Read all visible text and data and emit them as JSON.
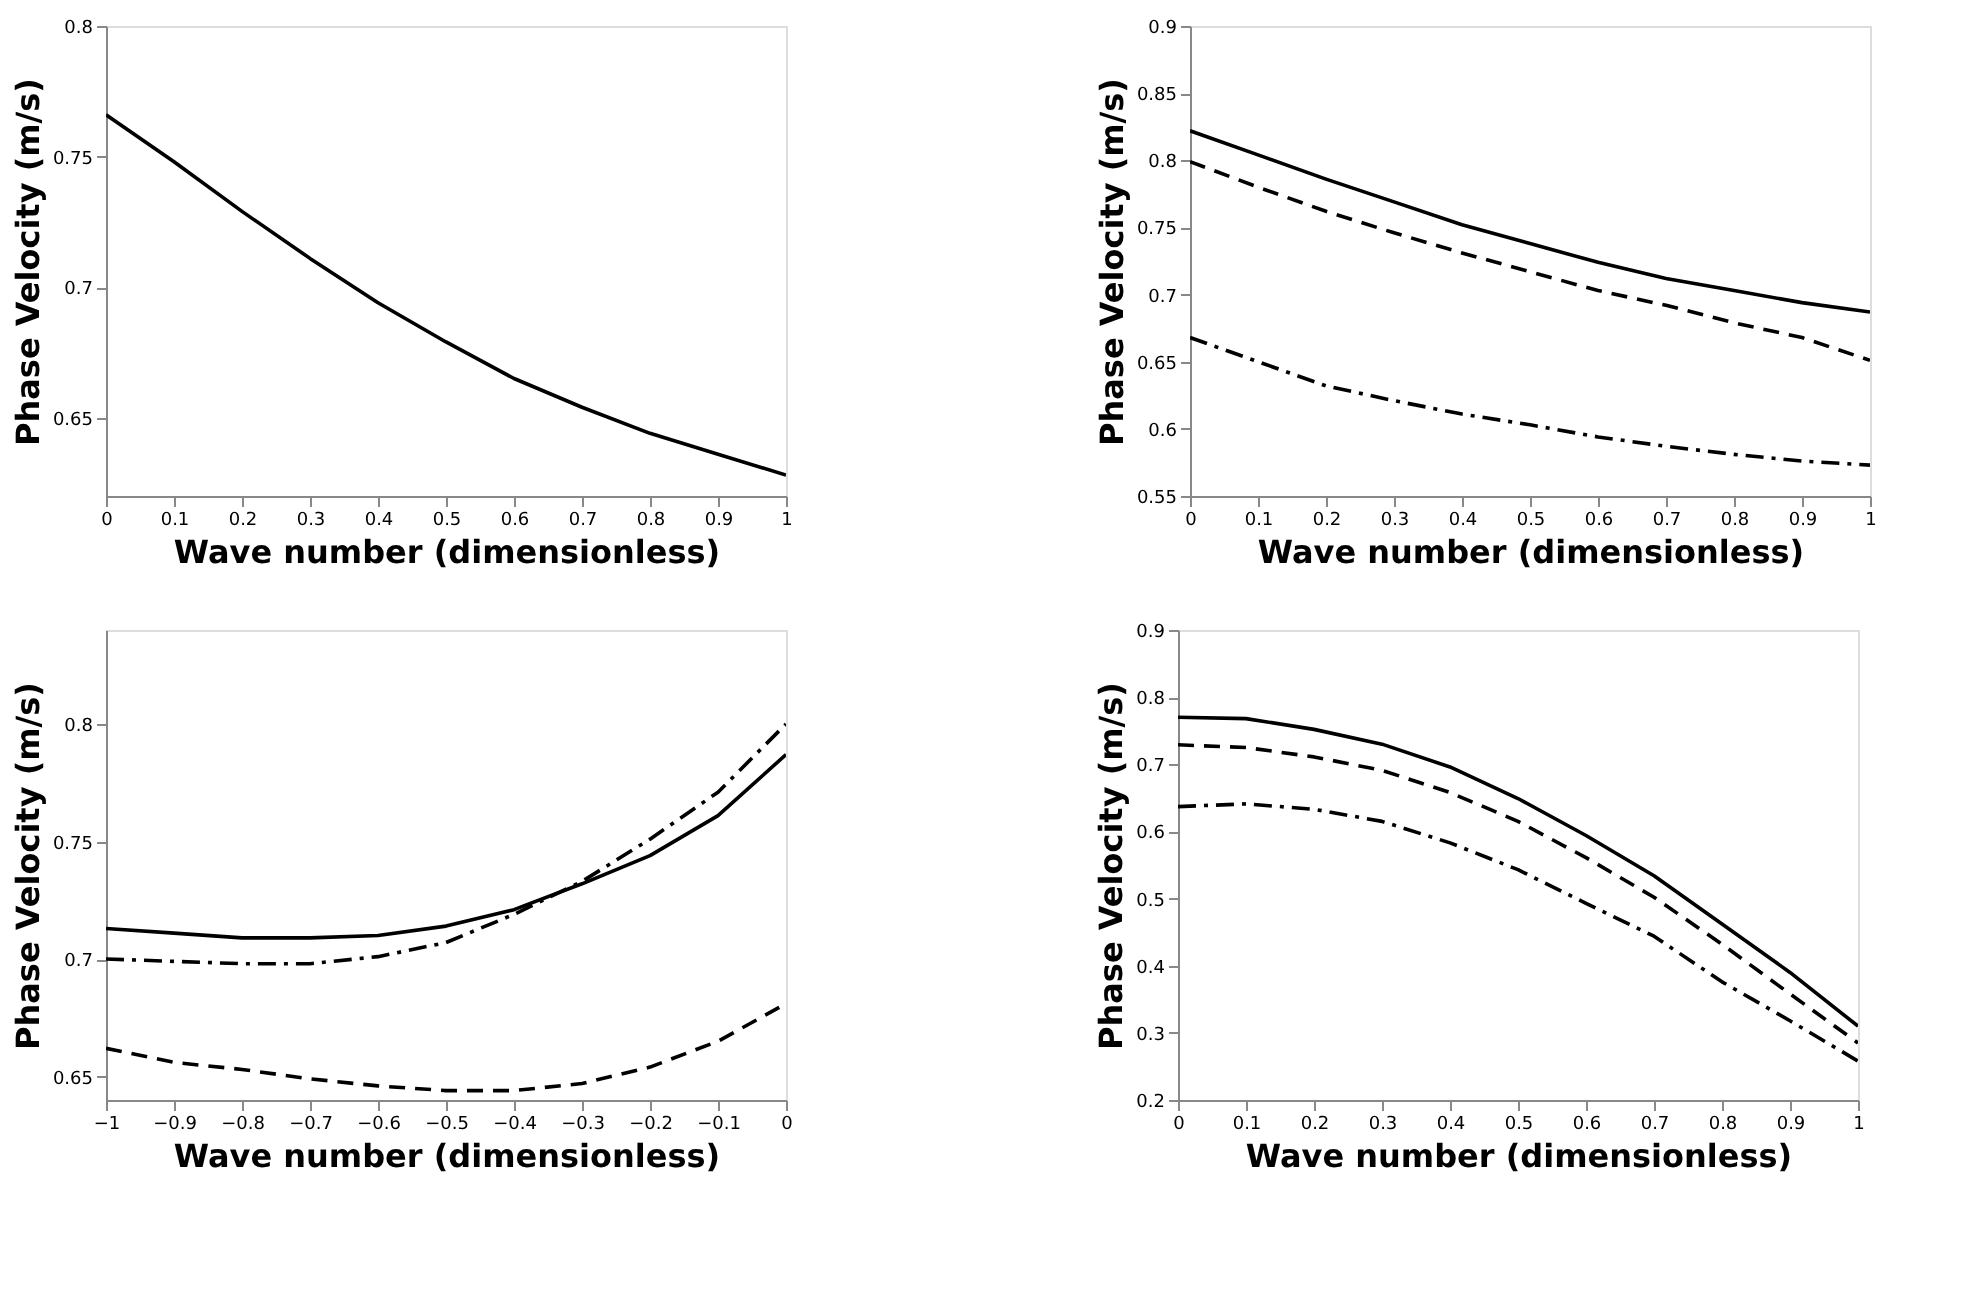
{
  "chart_data": [
    {
      "type": "line",
      "xlabel": "Wave number (dimensionless)",
      "ylabel": "Phase Velocity (m/s)",
      "x": [
        0,
        0.1,
        0.2,
        0.3,
        0.4,
        0.5,
        0.6,
        0.7,
        0.8,
        0.9,
        1
      ],
      "xlim": [
        0,
        1
      ],
      "xticks": [
        0,
        0.1,
        0.2,
        0.3,
        0.4,
        0.5,
        0.6,
        0.7,
        0.8,
        0.9,
        1
      ],
      "ylim": [
        0.62,
        0.8
      ],
      "yticks": [
        0.65,
        0.7,
        0.75,
        0.8
      ],
      "grid": false,
      "series": [
        {
          "color": "#000000",
          "line_style": "solid",
          "values": [
            0.766,
            0.748,
            0.729,
            0.711,
            0.694,
            0.679,
            0.665,
            0.654,
            0.644,
            0.636,
            0.628
          ]
        }
      ]
    },
    {
      "type": "line",
      "xlabel": "Wave number (dimensionless)",
      "ylabel": "Phase Velocity (m/s)",
      "x": [
        0,
        0.1,
        0.2,
        0.3,
        0.4,
        0.5,
        0.6,
        0.7,
        0.8,
        0.9,
        1
      ],
      "xlim": [
        0,
        1
      ],
      "xticks": [
        0,
        0.1,
        0.2,
        0.3,
        0.4,
        0.5,
        0.6,
        0.7,
        0.8,
        0.9,
        1
      ],
      "ylim": [
        0.55,
        0.9
      ],
      "yticks": [
        0.55,
        0.6,
        0.65,
        0.7,
        0.75,
        0.8,
        0.85,
        0.9
      ],
      "grid": false,
      "series": [
        {
          "color": "#000000",
          "line_style": "solid",
          "values": [
            0.822,
            0.804,
            0.786,
            0.769,
            0.752,
            0.738,
            0.724,
            0.712,
            0.703,
            0.694,
            0.687
          ]
        },
        {
          "color": "#000000",
          "line_style": "dashed",
          "values": [
            0.799,
            0.78,
            0.762,
            0.746,
            0.731,
            0.717,
            0.703,
            0.692,
            0.679,
            0.668,
            0.651
          ]
        },
        {
          "color": "#000000",
          "line_style": "dashdot",
          "values": [
            0.668,
            0.65,
            0.632,
            0.621,
            0.611,
            0.603,
            0.594,
            0.587,
            0.581,
            0.576,
            0.573
          ]
        }
      ]
    },
    {
      "type": "line",
      "xlabel": "Wave number (dimensionless)",
      "ylabel": "Phase Velocity (m/s)",
      "x": [
        -1,
        -0.9,
        -0.8,
        -0.7,
        -0.6,
        -0.5,
        -0.4,
        -0.3,
        -0.2,
        -0.1,
        0
      ],
      "xlim": [
        -1,
        0
      ],
      "xticks": [
        -1,
        -0.9,
        -0.8,
        -0.7,
        -0.6,
        -0.5,
        -0.4,
        -0.3,
        -0.2,
        -0.1,
        0
      ],
      "ylim": [
        0.64,
        0.84
      ],
      "yticks": [
        0.65,
        0.7,
        0.75,
        0.8
      ],
      "grid": false,
      "series": [
        {
          "color": "#000000",
          "line_style": "solid",
          "values": [
            0.713,
            0.711,
            0.709,
            0.709,
            0.71,
            0.714,
            0.721,
            0.732,
            0.744,
            0.761,
            0.787
          ]
        },
        {
          "color": "#000000",
          "line_style": "dashdot",
          "values": [
            0.7,
            0.699,
            0.698,
            0.698,
            0.701,
            0.707,
            0.719,
            0.733,
            0.751,
            0.771,
            0.8
          ]
        },
        {
          "color": "#000000",
          "line_style": "dashed",
          "values": [
            0.662,
            0.656,
            0.653,
            0.649,
            0.646,
            0.644,
            0.644,
            0.647,
            0.654,
            0.665,
            0.681
          ]
        }
      ]
    },
    {
      "type": "line",
      "xlabel": "Wave number (dimensionless)",
      "ylabel": "Phase Velocity (m/s)",
      "x": [
        0,
        0.1,
        0.2,
        0.3,
        0.4,
        0.5,
        0.6,
        0.7,
        0.8,
        0.9,
        1
      ],
      "xlim": [
        0,
        1
      ],
      "xticks": [
        0,
        0.1,
        0.2,
        0.3,
        0.4,
        0.5,
        0.6,
        0.7,
        0.8,
        0.9,
        1
      ],
      "ylim": [
        0.2,
        0.9
      ],
      "yticks": [
        0.2,
        0.3,
        0.4,
        0.5,
        0.6,
        0.7,
        0.8,
        0.9
      ],
      "grid": false,
      "series": [
        {
          "color": "#000000",
          "line_style": "solid",
          "values": [
            0.77,
            0.768,
            0.752,
            0.73,
            0.696,
            0.649,
            0.594,
            0.534,
            0.462,
            0.39,
            0.31
          ]
        },
        {
          "color": "#000000",
          "line_style": "dashed",
          "values": [
            0.729,
            0.725,
            0.711,
            0.691,
            0.658,
            0.615,
            0.561,
            0.502,
            0.432,
            0.358,
            0.285
          ]
        },
        {
          "color": "#000000",
          "line_style": "dashdot",
          "values": [
            0.637,
            0.641,
            0.633,
            0.615,
            0.583,
            0.543,
            0.493,
            0.444,
            0.376,
            0.318,
            0.258
          ]
        }
      ]
    }
  ]
}
